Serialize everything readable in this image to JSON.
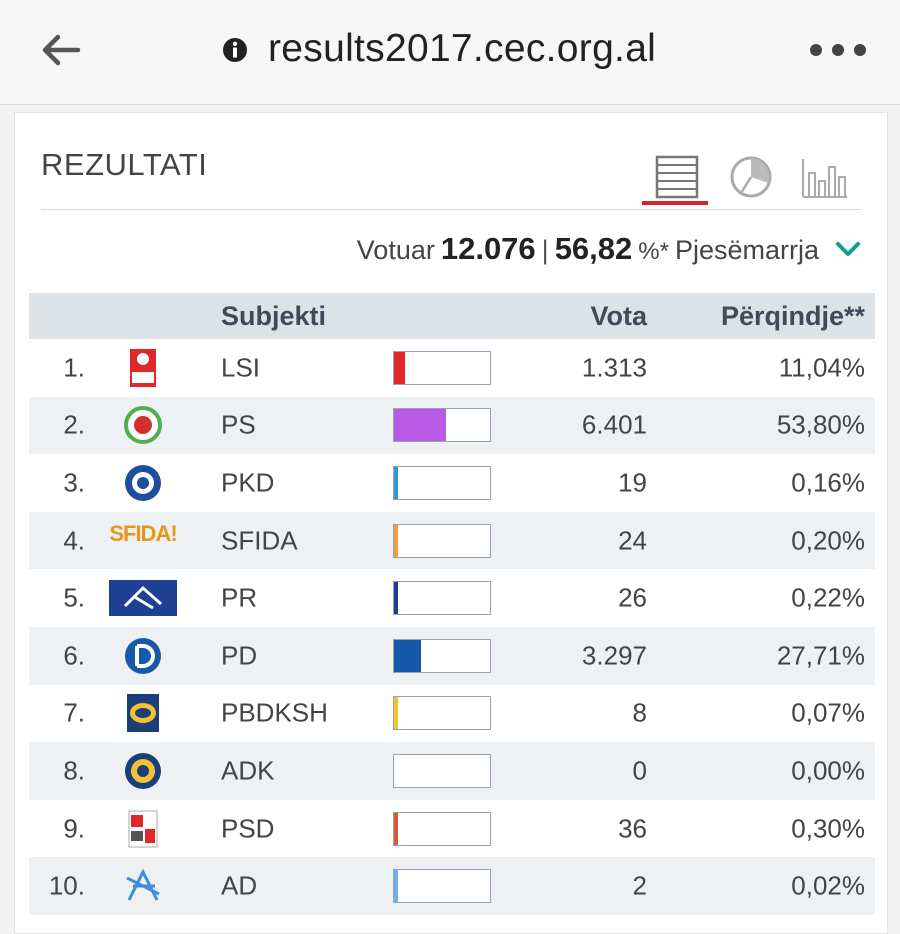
{
  "browser": {
    "url": "results2017.cec.org.al",
    "back_icon": "arrow-left-icon",
    "info_icon": "info-icon",
    "menu_icon": "more-dots-icon"
  },
  "panel": {
    "title": "REZULTATI",
    "views": [
      "table-view-icon",
      "pie-chart-icon",
      "bar-chart-icon"
    ],
    "active_view": "table-view-icon",
    "accent": "#d8232a"
  },
  "summary": {
    "votuar_label": "Votuar",
    "votuar_value": "12.076",
    "separator": "|",
    "participation_value": "56,82",
    "participation_suffix": "%*",
    "participation_label": "Pjesëmarrja"
  },
  "table": {
    "headers": {
      "subject": "Subjekti",
      "votes": "Vota",
      "percent": "Përqindje**"
    },
    "rows": [
      {
        "rank": "1.",
        "name": "LSI",
        "votes": "1.313",
        "percent": "11,04%",
        "share": 11.04,
        "color": "#e02626",
        "logo": "lsi-logo"
      },
      {
        "rank": "2.",
        "name": "PS",
        "votes": "6.401",
        "percent": "53,80%",
        "share": 53.8,
        "color": "#b85ce6",
        "logo": "ps-logo"
      },
      {
        "rank": "3.",
        "name": "PKD",
        "votes": "19",
        "percent": "0,16%",
        "share": 0.16,
        "color": "#2b9bd1",
        "logo": "pkd-logo"
      },
      {
        "rank": "4.",
        "name": "SFIDA",
        "votes": "24",
        "percent": "0,20%",
        "share": 0.2,
        "color": "#f0a040",
        "logo": "sfida-logo",
        "logo_text": "SFIDA!"
      },
      {
        "rank": "5.",
        "name": "PR",
        "votes": "26",
        "percent": "0,22%",
        "share": 0.22,
        "color": "#1f3f93",
        "logo": "pr-logo"
      },
      {
        "rank": "6.",
        "name": "PD",
        "votes": "3.297",
        "percent": "27,71%",
        "share": 27.71,
        "color": "#1659a8",
        "logo": "pd-logo"
      },
      {
        "rank": "7.",
        "name": "PBDKSH",
        "votes": "8",
        "percent": "0,07%",
        "share": 0.07,
        "color": "#f2c230",
        "logo": "pbdksh-logo"
      },
      {
        "rank": "8.",
        "name": "ADK",
        "votes": "0",
        "percent": "0,00%",
        "share": 0.0,
        "color": "#1a3e7a",
        "logo": "adk-logo"
      },
      {
        "rank": "9.",
        "name": "PSD",
        "votes": "36",
        "percent": "0,30%",
        "share": 0.3,
        "color": "#d9573a",
        "logo": "psd-logo"
      },
      {
        "rank": "10.",
        "name": "AD",
        "votes": "2",
        "percent": "0,02%",
        "share": 0.02,
        "color": "#6fb0e8",
        "logo": "ad-logo"
      }
    ]
  }
}
